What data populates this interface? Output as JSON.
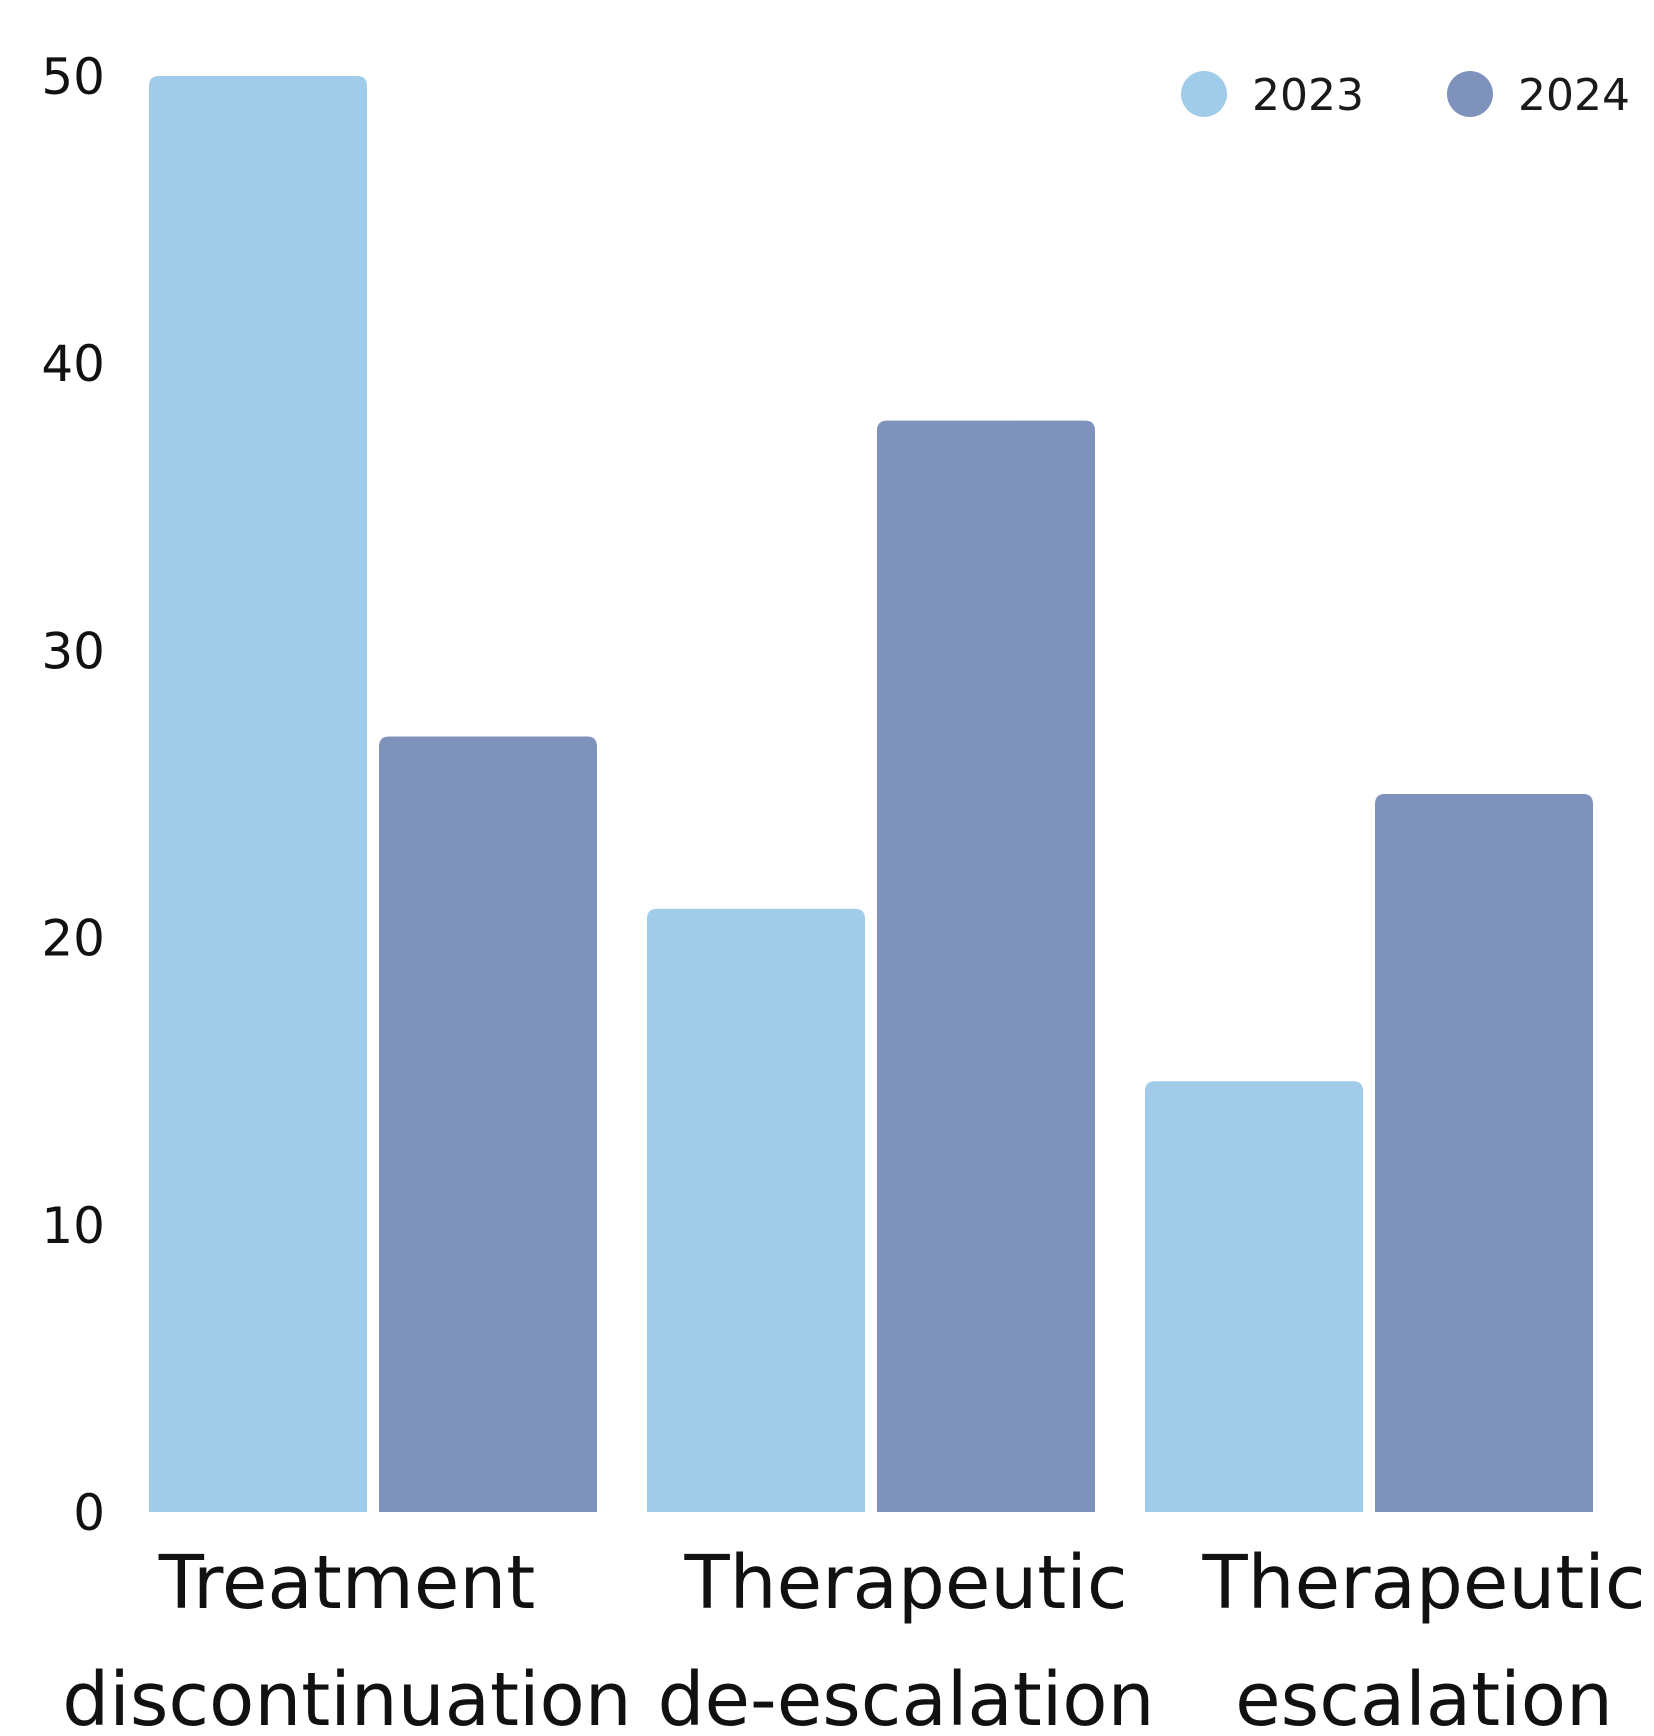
{
  "chart_data": {
    "type": "bar",
    "categories": [
      [
        "Treatment",
        "discontinuation"
      ],
      [
        "Therapeutic",
        "de-escalation"
      ],
      [
        "Therapeutic",
        "escalation"
      ]
    ],
    "series": [
      {
        "name": "2023",
        "color": "#a0cbe9",
        "values": [
          50,
          21,
          15
        ]
      },
      {
        "name": "2024",
        "color": "#7f92bc",
        "values": [
          27,
          38,
          25
        ]
      }
    ],
    "yticks": [
      "0",
      "10",
      "20",
      "30",
      "40",
      "50"
    ],
    "ylim": [
      0,
      50
    ],
    "grid": false,
    "legend_position": "top-right"
  }
}
